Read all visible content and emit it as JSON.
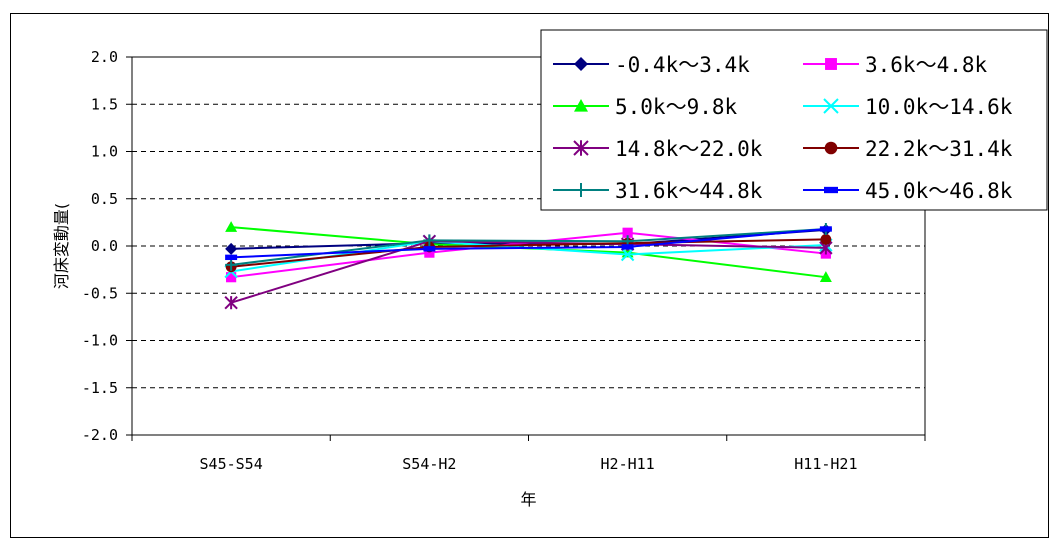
{
  "chart_data": {
    "type": "line",
    "title": "",
    "xlabel": "年",
    "ylabel": "河床変動量(",
    "categories": [
      "S45-S54",
      "S54-H2",
      "H2-H11",
      "H11-H21"
    ],
    "ylim": [
      -2.0,
      2.0
    ],
    "yticks": [
      "2.0",
      "1.5",
      "1.0",
      "0.5",
      "0.0",
      "-0.5",
      "-1.0",
      "-1.5",
      "-2.0"
    ],
    "grid": "horizontal dashed",
    "legend_position": "top-right",
    "series": [
      {
        "name": "-0.4k～3.4k",
        "color": "#000080",
        "marker": "diamond",
        "values": [
          -0.03,
          0.03,
          0.02,
          0.17
        ]
      },
      {
        "name": "3.6k～4.8k",
        "color": "#FF00FF",
        "marker": "square",
        "values": [
          -0.33,
          -0.07,
          0.14,
          -0.08
        ]
      },
      {
        "name": "5.0k～9.8k",
        "color": "#00FF00",
        "marker": "triangle",
        "values": [
          0.2,
          0.02,
          -0.07,
          -0.33
        ]
      },
      {
        "name": "10.0k～14.6k",
        "color": "#00FFFF",
        "marker": "x",
        "values": [
          -0.27,
          0.05,
          -0.09,
          0.01
        ]
      },
      {
        "name": "14.8k～22.0k",
        "color": "#800080",
        "marker": "star",
        "values": [
          -0.6,
          0.05,
          0.02,
          -0.02
        ]
      },
      {
        "name": "22.2k～31.4k",
        "color": "#800000",
        "marker": "circle",
        "values": [
          -0.22,
          -0.01,
          0.03,
          0.07
        ]
      },
      {
        "name": "31.6k～44.8k",
        "color": "#008080",
        "marker": "plus",
        "values": [
          -0.2,
          0.06,
          0.05,
          0.18
        ]
      },
      {
        "name": "45.0k～46.8k",
        "color": "#0000FF",
        "marker": "dash",
        "values": [
          -0.12,
          -0.03,
          -0.01,
          0.18
        ]
      }
    ]
  }
}
